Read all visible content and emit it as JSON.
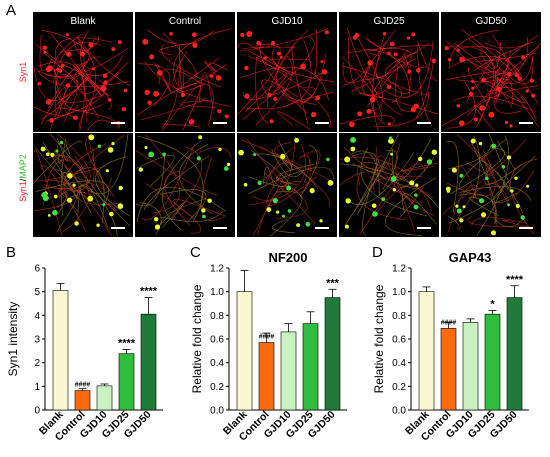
{
  "panel_letters": [
    "A",
    "B",
    "C",
    "D"
  ],
  "micrograph": {
    "columns": [
      "Blank",
      "Control",
      "GJD10",
      "GJD25",
      "GJD50"
    ],
    "row_labels": {
      "top": "Syn1",
      "bottom_part1": "Syn1",
      "bottom_sep": "/",
      "bottom_part2": "MAP2"
    },
    "colors": {
      "syn1": "#ff2020",
      "map2": "#40e040",
      "overlap": "#e8ff30",
      "header_bg": "#000000"
    },
    "density": [
      1.0,
      0.45,
      0.6,
      0.7,
      0.85
    ]
  },
  "chart_data": [
    {
      "type": "bar",
      "panel": "B",
      "title": "",
      "categories": [
        "Blank",
        "Control",
        "GJD10",
        "GJD25",
        "GJD50"
      ],
      "values": [
        5.05,
        0.82,
        1.02,
        2.38,
        4.05
      ],
      "errors": [
        0.3,
        0.08,
        0.08,
        0.18,
        0.7
      ],
      "significance": [
        "",
        "####",
        "",
        "****",
        "****"
      ],
      "ylabel": "Syn1 intensity",
      "ylim": [
        0,
        6
      ],
      "yticks": [
        "0",
        "1",
        "2",
        "3",
        "4",
        "5",
        "6"
      ],
      "colors": [
        "#fbf7d3",
        "#ff6a10",
        "#c9f2c1",
        "#2fbd3b",
        "#1f7a3c"
      ]
    },
    {
      "type": "bar",
      "panel": "C",
      "title": "NF200",
      "categories": [
        "Blank",
        "Control",
        "GJD10",
        "GJD25",
        "GJD50"
      ],
      "values": [
        1.0,
        0.57,
        0.66,
        0.73,
        0.95
      ],
      "errors": [
        0.18,
        0.08,
        0.07,
        0.1,
        0.07
      ],
      "significance": [
        "",
        "####",
        "",
        "",
        "***"
      ],
      "ylabel": "Relative fold change",
      "ylim": [
        0,
        1.2
      ],
      "yticks": [
        "0.0",
        "0.2",
        "0.4",
        "0.6",
        "0.8",
        "1.0",
        "1.2"
      ],
      "colors": [
        "#fbf7d3",
        "#ff6a10",
        "#c9f2c1",
        "#2fbd3b",
        "#1f7a3c"
      ]
    },
    {
      "type": "bar",
      "panel": "D",
      "title": "GAP43",
      "categories": [
        "Blank",
        "Control",
        "GJD10",
        "GJD25",
        "GJD50"
      ],
      "values": [
        1.0,
        0.69,
        0.74,
        0.81,
        0.95
      ],
      "errors": [
        0.04,
        0.05,
        0.03,
        0.03,
        0.1
      ],
      "significance": [
        "",
        "####",
        "",
        "*",
        "****"
      ],
      "ylabel": "Relative fold change",
      "ylim": [
        0,
        1.2
      ],
      "yticks": [
        "0.0",
        "0.2",
        "0.4",
        "0.6",
        "0.8",
        "1.0",
        "1.2"
      ],
      "colors": [
        "#fbf7d3",
        "#ff6a10",
        "#c9f2c1",
        "#2fbd3b",
        "#1f7a3c"
      ]
    }
  ]
}
